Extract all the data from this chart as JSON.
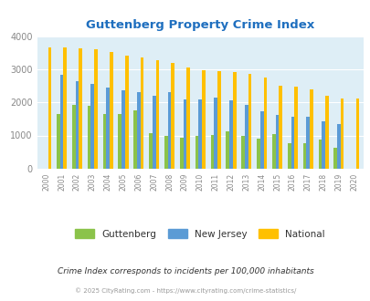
{
  "title": "Guttenberg Property Crime Index",
  "years": [
    2000,
    2001,
    2002,
    2003,
    2004,
    2005,
    2006,
    2007,
    2008,
    2009,
    2010,
    2011,
    2012,
    2013,
    2014,
    2015,
    2016,
    2017,
    2018,
    2019,
    2020
  ],
  "guttenberg": [
    0,
    1650,
    1930,
    1900,
    1650,
    1650,
    1750,
    1080,
    1000,
    930,
    1000,
    1020,
    1130,
    1000,
    900,
    1030,
    760,
    760,
    870,
    630,
    0
  ],
  "new_jersey": [
    0,
    2840,
    2650,
    2550,
    2460,
    2360,
    2310,
    2210,
    2310,
    2090,
    2090,
    2150,
    2070,
    1910,
    1730,
    1620,
    1570,
    1560,
    1430,
    1340,
    0
  ],
  "national": [
    3670,
    3660,
    3620,
    3600,
    3510,
    3420,
    3360,
    3280,
    3200,
    3040,
    2960,
    2940,
    2910,
    2860,
    2760,
    2510,
    2470,
    2400,
    2190,
    2110,
    2110
  ],
  "guttenberg_color": "#8bc34a",
  "new_jersey_color": "#5b9bd5",
  "national_color": "#ffc000",
  "bg_color": "#deeef6",
  "title_color": "#1f6fbf",
  "ylabel_max": 4000,
  "subtitle": "Crime Index corresponds to incidents per 100,000 inhabitants",
  "footnote": "© 2025 CityRating.com - https://www.cityrating.com/crime-statistics/",
  "subtitle_color": "#333333",
  "footnote_color": "#999999"
}
